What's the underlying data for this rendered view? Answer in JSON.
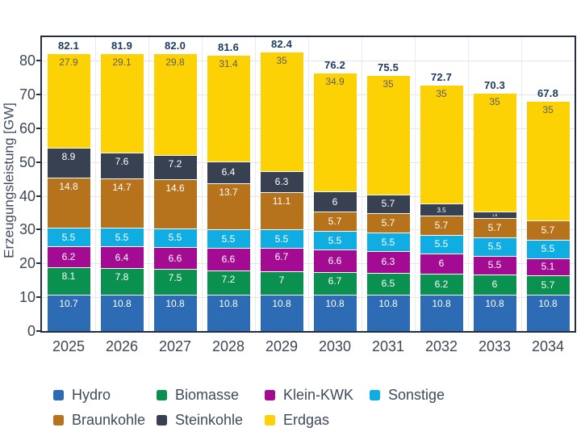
{
  "chart_data": {
    "type": "bar",
    "variant": "stacked",
    "title": "",
    "ylabel": "Erzeugungsleistung [GW]",
    "xlabel": "",
    "categories": [
      "2025",
      "2026",
      "2027",
      "2028",
      "2029",
      "2030",
      "2031",
      "2032",
      "2033",
      "2034"
    ],
    "series": [
      {
        "name": "Hydro",
        "color": "#2d6cb4",
        "label_color": "#ffffff",
        "values": [
          10.7,
          10.8,
          10.8,
          10.8,
          10.8,
          10.8,
          10.8,
          10.8,
          10.8,
          10.8
        ]
      },
      {
        "name": "Biomasse",
        "color": "#0a9150",
        "label_color": "#ffffff",
        "values": [
          8.1,
          7.8,
          7.5,
          7.2,
          7,
          6.7,
          6.5,
          6.2,
          6,
          5.7
        ]
      },
      {
        "name": "Klein-KWK",
        "color": "#a30b93",
        "label_color": "#ffffff",
        "values": [
          6.2,
          6.4,
          6.6,
          6.6,
          6.7,
          6.6,
          6.3,
          6,
          5.5,
          5.1
        ]
      },
      {
        "name": "Sonstige",
        "color": "#10ade2",
        "label_color": "#ffffff",
        "values": [
          5.5,
          5.5,
          5.5,
          5.5,
          5.5,
          5.5,
          5.5,
          5.5,
          5.5,
          5.5
        ]
      },
      {
        "name": "Braunkohle",
        "color": "#b7731c",
        "label_color": "#ffffff",
        "values": [
          14.8,
          14.7,
          14.6,
          13.7,
          11.1,
          5.7,
          5.7,
          5.7,
          5.7,
          5.7
        ]
      },
      {
        "name": "Steinkohle",
        "color": "#374151",
        "label_color": "#ffffff",
        "values": [
          8.9,
          7.6,
          7.2,
          6.4,
          6.3,
          6,
          5.7,
          3.5,
          1.8,
          0
        ]
      },
      {
        "name": "Erdgas",
        "color": "#fdd205",
        "label_color": "#5c5d61",
        "values": [
          27.9,
          29.1,
          29.8,
          31.4,
          35,
          34.9,
          35,
          35,
          35,
          35
        ]
      }
    ],
    "totals": [
      "82.1",
      "81.9",
      "82.0",
      "81.6",
      "82.4",
      "76.2",
      "75.5",
      "72.7",
      "70.3",
      "67.8"
    ],
    "ylim": [
      0,
      87
    ],
    "yticks": [
      0,
      10,
      20,
      30,
      40,
      50,
      60,
      70,
      80
    ],
    "grid": true,
    "legend_position": "bottom"
  },
  "colors": {
    "axis_border": "#242e3e",
    "grid_h": "#e2e5e9",
    "grid_v": "#e7eaee",
    "tick_text": "#3d4653",
    "total_label": "#1e3a63",
    "legend_text": "#3f4a5a",
    "segment_divider": "#fcfcfc"
  }
}
